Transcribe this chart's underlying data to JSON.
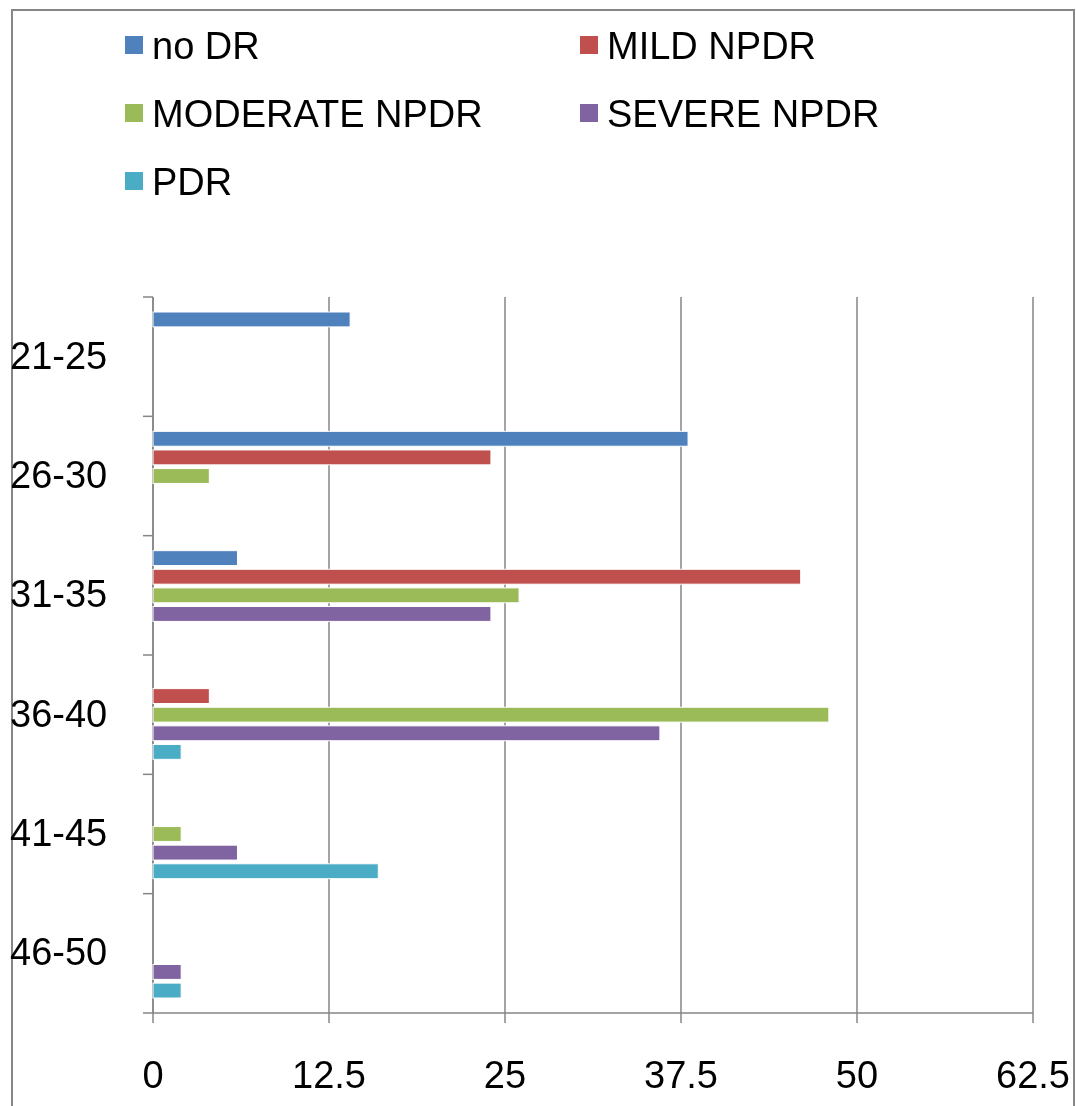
{
  "chart_data": {
    "type": "bar",
    "orientation": "horizontal",
    "categories": [
      "21-25",
      "26-30",
      "31-35",
      "36-40",
      "41-45",
      "46-50"
    ],
    "series": [
      {
        "name": "no DR",
        "color": "#4f81bd",
        "values": [
          14,
          38,
          6,
          0,
          0,
          0
        ]
      },
      {
        "name": "MILD NPDR",
        "color": "#c0504d",
        "values": [
          0,
          24,
          46,
          4,
          0,
          0
        ]
      },
      {
        "name": "MODERATE NPDR",
        "color": "#9bbb59",
        "values": [
          0,
          4,
          26,
          48,
          2,
          0
        ]
      },
      {
        "name": "SEVERE NPDR",
        "color": "#8064a2",
        "values": [
          0,
          0,
          24,
          36,
          6,
          2
        ]
      },
      {
        "name": "PDR",
        "color": "#4bacc6",
        "values": [
          0,
          0,
          0,
          2,
          16,
          2
        ]
      }
    ],
    "xlim": [
      0,
      62.5
    ],
    "xticks": [
      0,
      12.5,
      25,
      37.5,
      50,
      62.5
    ],
    "grid": "x",
    "legend": "top"
  }
}
